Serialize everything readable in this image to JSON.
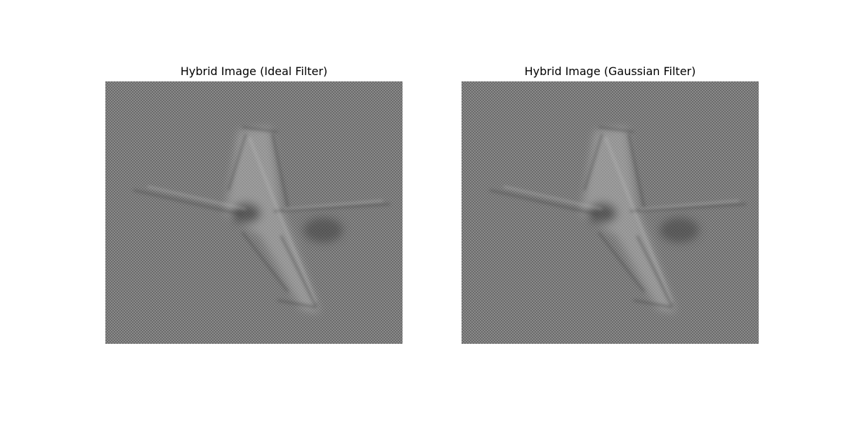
{
  "figure": {
    "panels": [
      {
        "title": "Hybrid Image (Ideal Filter)",
        "image_description_icon": "hybrid-airplane-image"
      },
      {
        "title": "Hybrid Image (Gaussian Filter)",
        "image_description_icon": "hybrid-airplane-image"
      }
    ]
  },
  "colors": {
    "background": "#ffffff",
    "image_base_gray": "#8a8a8a",
    "title_text": "#000000"
  }
}
